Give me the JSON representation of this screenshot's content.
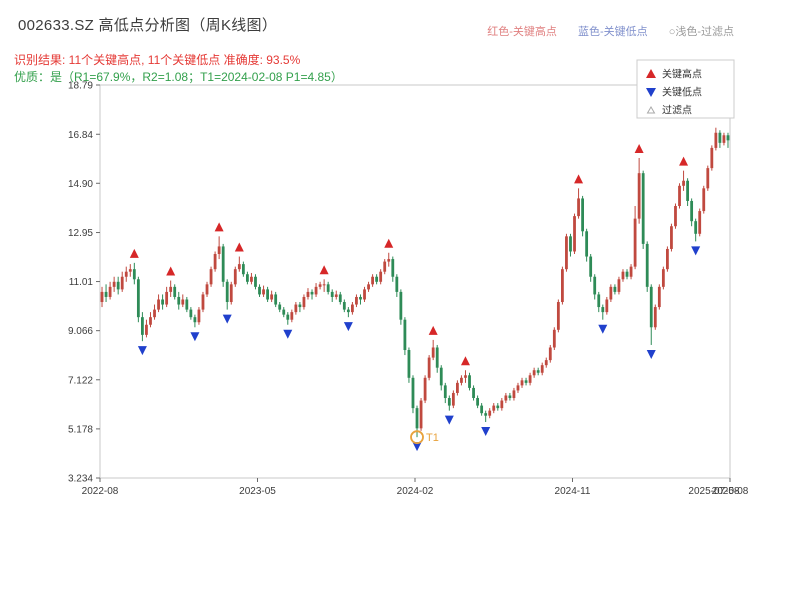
{
  "header": {
    "title": "002633.SZ 高低点分析图（周K线图）",
    "legend_top": [
      {
        "label": "红色-关键高点",
        "color": "#e08080"
      },
      {
        "label": "蓝色-关键低点",
        "color": "#8090cc"
      },
      {
        "label": "○浅色-过滤点",
        "color": "#9a9a9a"
      }
    ],
    "subtitle1": "识别结果: 11个关键高点, 11个关键低点  准确度: 93.5%",
    "subtitle1_color": "#e53935",
    "subtitle2": "优质：是（R1=67.9%，R2=1.08；T1=2024-02-08 P1=4.85）",
    "subtitle2_color": "#33a04c"
  },
  "chart_data": {
    "type": "candlestick",
    "title": "002633.SZ 高低点分析图（周K线图）",
    "xlabel": "",
    "ylabel": "",
    "ylim": [
      3.234,
      18.79
    ],
    "y_ticks": [
      {
        "label": "18.79",
        "value": 18.79
      },
      {
        "label": "16.84",
        "value": 16.84
      },
      {
        "label": "14.90",
        "value": 14.9
      },
      {
        "label": "12.95",
        "value": 12.95
      },
      {
        "label": "11.01",
        "value": 11.01
      },
      {
        "label": "9.066",
        "value": 9.066
      },
      {
        "label": "7.122",
        "value": 7.122
      },
      {
        "label": "5.178",
        "value": 5.178
      },
      {
        "label": "3.234",
        "value": 3.234
      }
    ],
    "x_ticks": [
      {
        "label": "2022-08",
        "week": 0
      },
      {
        "label": "2023-05",
        "week": 39
      },
      {
        "label": "2024-02",
        "week": 78
      },
      {
        "label": "2024-11",
        "week": 117
      },
      {
        "label": "2025-08",
        "week": 156
      }
    ],
    "x_end_label": "2025-07-08",
    "legend": [
      {
        "label": "关键高点",
        "marker": "up-triangle",
        "color": "#d62728"
      },
      {
        "label": "关键低点",
        "marker": "down-triangle",
        "color": "#2040cc"
      },
      {
        "label": "过滤点",
        "marker": "small-triangle",
        "color": "#aaaaaa"
      }
    ],
    "colors": {
      "up": "#c0493f",
      "down": "#2e8b57",
      "key_high": "#d62728",
      "key_low": "#2040cc",
      "t1": "#e8a23c"
    },
    "key_high_indices": [
      8,
      17,
      29,
      34,
      55,
      71,
      82,
      90,
      118,
      133,
      144
    ],
    "key_low_indices": [
      10,
      23,
      31,
      46,
      61,
      78,
      86,
      95,
      124,
      136,
      147
    ],
    "t1_annotation": {
      "index": 78,
      "price": 4.85,
      "label": "T1"
    },
    "candles": [
      [
        10.2,
        10.8,
        10.0,
        10.6
      ],
      [
        10.6,
        10.9,
        10.2,
        10.4
      ],
      [
        10.4,
        11.0,
        10.3,
        10.8
      ],
      [
        10.8,
        11.2,
        10.6,
        11.0
      ],
      [
        11.0,
        11.2,
        10.5,
        10.7
      ],
      [
        10.7,
        11.4,
        10.6,
        11.2
      ],
      [
        11.2,
        11.6,
        11.0,
        11.4
      ],
      [
        11.4,
        11.7,
        11.2,
        11.5
      ],
      [
        11.5,
        11.75,
        10.9,
        11.1
      ],
      [
        11.1,
        11.2,
        9.4,
        9.6
      ],
      [
        9.6,
        9.8,
        8.65,
        8.9
      ],
      [
        8.9,
        9.5,
        8.8,
        9.3
      ],
      [
        9.3,
        9.8,
        9.2,
        9.6
      ],
      [
        9.6,
        10.1,
        9.5,
        9.9
      ],
      [
        9.9,
        10.5,
        9.8,
        10.3
      ],
      [
        10.3,
        10.5,
        9.9,
        10.1
      ],
      [
        10.1,
        10.8,
        10.0,
        10.6
      ],
      [
        10.6,
        11.05,
        10.4,
        10.8
      ],
      [
        10.8,
        10.9,
        10.3,
        10.4
      ],
      [
        10.4,
        10.6,
        9.9,
        10.1
      ],
      [
        10.1,
        10.5,
        10.0,
        10.3
      ],
      [
        10.3,
        10.4,
        9.8,
        9.9
      ],
      [
        9.9,
        10.0,
        9.5,
        9.6
      ],
      [
        9.6,
        9.7,
        9.2,
        9.4
      ],
      [
        9.4,
        10.0,
        9.3,
        9.9
      ],
      [
        9.9,
        10.6,
        9.8,
        10.5
      ],
      [
        10.5,
        11.0,
        10.4,
        10.9
      ],
      [
        10.9,
        11.6,
        10.8,
        11.5
      ],
      [
        11.5,
        12.2,
        11.4,
        12.1
      ],
      [
        12.1,
        12.8,
        11.9,
        12.4
      ],
      [
        12.4,
        12.5,
        10.8,
        11.0
      ],
      [
        11.0,
        11.1,
        9.9,
        10.2
      ],
      [
        10.2,
        11.0,
        10.1,
        10.9
      ],
      [
        10.9,
        11.6,
        10.8,
        11.5
      ],
      [
        11.5,
        12.0,
        11.4,
        11.7
      ],
      [
        11.7,
        11.8,
        11.2,
        11.3
      ],
      [
        11.3,
        11.4,
        10.9,
        11.0
      ],
      [
        11.0,
        11.35,
        10.9,
        11.2
      ],
      [
        11.2,
        11.3,
        10.7,
        10.8
      ],
      [
        10.8,
        10.9,
        10.4,
        10.5
      ],
      [
        10.5,
        10.85,
        10.4,
        10.7
      ],
      [
        10.7,
        10.8,
        10.2,
        10.3
      ],
      [
        10.3,
        10.65,
        10.2,
        10.5
      ],
      [
        10.5,
        10.6,
        10.0,
        10.1
      ],
      [
        10.1,
        10.2,
        9.8,
        9.9
      ],
      [
        9.9,
        10.0,
        9.6,
        9.7
      ],
      [
        9.7,
        9.8,
        9.3,
        9.5
      ],
      [
        9.5,
        9.9,
        9.4,
        9.8
      ],
      [
        9.8,
        10.2,
        9.7,
        10.1
      ],
      [
        10.1,
        10.2,
        9.8,
        10.0
      ],
      [
        10.0,
        10.5,
        9.9,
        10.4
      ],
      [
        10.4,
        10.75,
        10.3,
        10.6
      ],
      [
        10.6,
        10.7,
        10.3,
        10.5
      ],
      [
        10.5,
        10.95,
        10.4,
        10.8
      ],
      [
        10.8,
        11.0,
        10.7,
        10.9
      ],
      [
        10.9,
        11.1,
        10.6,
        10.9
      ],
      [
        10.9,
        11.0,
        10.5,
        10.6
      ],
      [
        10.6,
        10.7,
        10.2,
        10.4
      ],
      [
        10.4,
        10.65,
        10.3,
        10.5
      ],
      [
        10.5,
        10.6,
        10.1,
        10.2
      ],
      [
        10.2,
        10.3,
        9.8,
        9.9
      ],
      [
        9.9,
        10.0,
        9.6,
        9.8
      ],
      [
        9.8,
        10.2,
        9.7,
        10.1
      ],
      [
        10.1,
        10.5,
        10.0,
        10.4
      ],
      [
        10.4,
        10.5,
        10.1,
        10.3
      ],
      [
        10.3,
        10.8,
        10.2,
        10.7
      ],
      [
        10.7,
        11.0,
        10.6,
        10.9
      ],
      [
        10.9,
        11.3,
        10.8,
        11.2
      ],
      [
        11.2,
        11.3,
        10.9,
        11.0
      ],
      [
        11.0,
        11.5,
        10.9,
        11.4
      ],
      [
        11.4,
        11.9,
        11.3,
        11.8
      ],
      [
        11.8,
        12.15,
        11.6,
        11.9
      ],
      [
        11.9,
        12.0,
        11.0,
        11.2
      ],
      [
        11.2,
        11.3,
        10.4,
        10.6
      ],
      [
        10.6,
        10.7,
        9.3,
        9.5
      ],
      [
        9.5,
        9.6,
        8.1,
        8.3
      ],
      [
        8.3,
        8.4,
        7.0,
        7.2
      ],
      [
        7.2,
        7.3,
        5.8,
        6.0
      ],
      [
        6.0,
        6.1,
        4.85,
        5.2
      ],
      [
        5.2,
        6.4,
        5.1,
        6.3
      ],
      [
        6.3,
        7.3,
        6.2,
        7.2
      ],
      [
        7.2,
        8.1,
        7.1,
        8.0
      ],
      [
        8.0,
        8.7,
        7.9,
        8.4
      ],
      [
        8.4,
        8.5,
        7.4,
        7.6
      ],
      [
        7.6,
        7.7,
        6.7,
        6.9
      ],
      [
        6.9,
        7.0,
        6.2,
        6.4
      ],
      [
        6.4,
        6.5,
        5.9,
        6.1
      ],
      [
        6.1,
        6.7,
        6.0,
        6.6
      ],
      [
        6.6,
        7.1,
        6.5,
        7.0
      ],
      [
        7.0,
        7.3,
        6.9,
        7.2
      ],
      [
        7.2,
        7.5,
        7.0,
        7.3
      ],
      [
        7.3,
        7.4,
        6.7,
        6.8
      ],
      [
        6.8,
        6.9,
        6.3,
        6.4
      ],
      [
        6.4,
        6.5,
        6.0,
        6.1
      ],
      [
        6.1,
        6.2,
        5.7,
        5.8
      ],
      [
        5.8,
        5.9,
        5.45,
        5.7
      ],
      [
        5.7,
        6.0,
        5.6,
        5.9
      ],
      [
        5.9,
        6.2,
        5.8,
        6.1
      ],
      [
        6.1,
        6.2,
        5.9,
        6.0
      ],
      [
        6.0,
        6.4,
        5.9,
        6.3
      ],
      [
        6.3,
        6.6,
        6.2,
        6.5
      ],
      [
        6.5,
        6.6,
        6.3,
        6.4
      ],
      [
        6.4,
        6.8,
        6.3,
        6.7
      ],
      [
        6.7,
        7.0,
        6.6,
        6.9
      ],
      [
        6.9,
        7.2,
        6.8,
        7.1
      ],
      [
        7.1,
        7.2,
        6.9,
        7.0
      ],
      [
        7.0,
        7.4,
        6.9,
        7.3
      ],
      [
        7.3,
        7.6,
        7.2,
        7.5
      ],
      [
        7.5,
        7.6,
        7.3,
        7.4
      ],
      [
        7.4,
        7.8,
        7.3,
        7.7
      ],
      [
        7.7,
        8.0,
        7.6,
        7.9
      ],
      [
        7.9,
        8.5,
        7.8,
        8.4
      ],
      [
        8.4,
        9.2,
        8.3,
        9.1
      ],
      [
        9.1,
        10.3,
        9.0,
        10.2
      ],
      [
        10.2,
        11.6,
        10.1,
        11.5
      ],
      [
        11.5,
        12.9,
        11.4,
        12.8
      ],
      [
        12.8,
        12.9,
        12.0,
        12.2
      ],
      [
        12.2,
        13.7,
        12.1,
        13.6
      ],
      [
        13.6,
        14.7,
        13.5,
        14.3
      ],
      [
        14.3,
        14.4,
        12.8,
        13.0
      ],
      [
        13.0,
        13.1,
        11.8,
        12.0
      ],
      [
        12.0,
        12.1,
        11.0,
        11.2
      ],
      [
        11.2,
        11.3,
        10.3,
        10.5
      ],
      [
        10.5,
        10.6,
        9.8,
        10.0
      ],
      [
        10.0,
        10.1,
        9.5,
        9.8
      ],
      [
        9.8,
        10.4,
        9.7,
        10.3
      ],
      [
        10.3,
        10.9,
        10.2,
        10.8
      ],
      [
        10.8,
        10.9,
        10.5,
        10.6
      ],
      [
        10.6,
        11.2,
        10.5,
        11.1
      ],
      [
        11.1,
        11.5,
        11.0,
        11.4
      ],
      [
        11.4,
        11.5,
        11.1,
        11.2
      ],
      [
        11.2,
        11.7,
        11.1,
        11.6
      ],
      [
        11.6,
        14.0,
        11.5,
        13.5
      ],
      [
        13.5,
        15.9,
        13.3,
        15.3
      ],
      [
        15.3,
        15.4,
        12.3,
        12.5
      ],
      [
        12.5,
        12.6,
        10.6,
        10.8
      ],
      [
        10.8,
        10.9,
        8.5,
        9.2
      ],
      [
        9.2,
        10.1,
        9.1,
        10.0
      ],
      [
        10.0,
        10.9,
        9.9,
        10.8
      ],
      [
        10.8,
        11.6,
        10.7,
        11.5
      ],
      [
        11.5,
        12.4,
        11.4,
        12.3
      ],
      [
        12.3,
        13.3,
        12.2,
        13.2
      ],
      [
        13.2,
        14.1,
        13.1,
        14.0
      ],
      [
        14.0,
        14.9,
        13.9,
        14.8
      ],
      [
        14.8,
        15.4,
        14.6,
        15.0
      ],
      [
        15.0,
        15.1,
        14.0,
        14.2
      ],
      [
        14.2,
        14.3,
        13.2,
        13.4
      ],
      [
        13.4,
        13.5,
        12.6,
        12.9
      ],
      [
        12.9,
        13.9,
        12.8,
        13.8
      ],
      [
        13.8,
        14.8,
        13.7,
        14.7
      ],
      [
        14.7,
        15.6,
        14.6,
        15.5
      ],
      [
        15.5,
        16.4,
        15.4,
        16.3
      ],
      [
        16.3,
        17.1,
        16.2,
        16.9
      ],
      [
        16.9,
        17.0,
        16.3,
        16.5
      ],
      [
        16.5,
        16.9,
        16.4,
        16.8
      ],
      [
        16.8,
        16.9,
        16.3,
        16.6
      ]
    ]
  }
}
